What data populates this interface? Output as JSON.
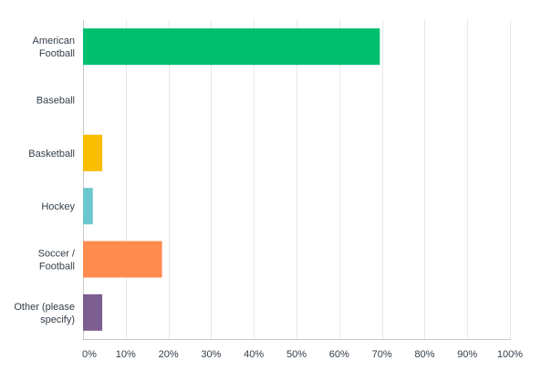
{
  "chart_data": {
    "type": "bar",
    "orientation": "horizontal",
    "categories": [
      [
        "American",
        "Football"
      ],
      [
        "Baseball"
      ],
      [
        "Basketball"
      ],
      [
        "Hockey"
      ],
      [
        "Soccer /",
        "Football"
      ],
      [
        "Other (please",
        "specify)"
      ]
    ],
    "values": [
      69.5,
      0,
      4.5,
      2.3,
      18.5,
      4.5
    ],
    "colors": [
      "#00bf6f",
      "#507cb6",
      "#f9be00",
      "#6bc8cd",
      "#ff8b4f",
      "#7d5e90"
    ],
    "x_ticks": [
      "0%",
      "10%",
      "20%",
      "30%",
      "40%",
      "50%",
      "60%",
      "70%",
      "80%",
      "90%",
      "100%"
    ],
    "xlim": [
      0,
      100
    ],
    "grid": true,
    "title": "",
    "xlabel": "",
    "ylabel": ""
  }
}
